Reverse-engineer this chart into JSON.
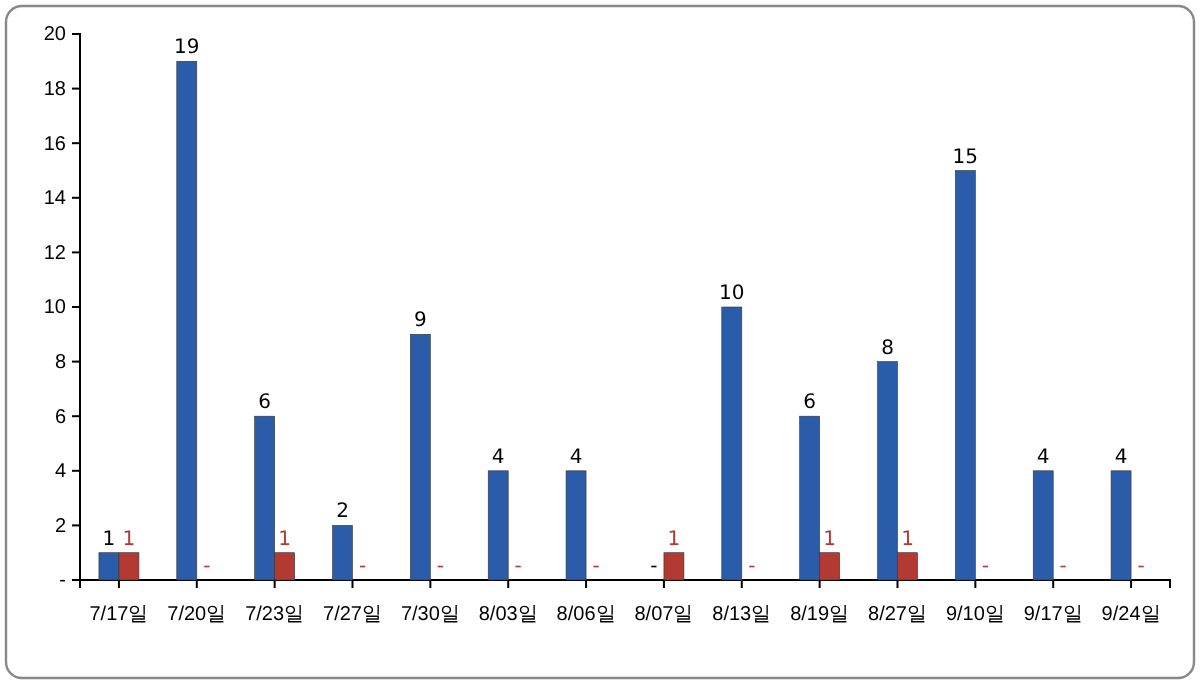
{
  "chart_data": {
    "type": "bar",
    "categories": [
      "7/17일",
      "7/20일",
      "7/23일",
      "7/27일",
      "7/30일",
      "8/03일",
      "8/06일",
      "8/07일",
      "8/13일",
      "8/19일",
      "8/27일",
      "9/10일",
      "9/17일",
      "9/24일"
    ],
    "series": [
      {
        "color": "#2a5caa",
        "values": [
          1,
          19,
          6,
          2,
          9,
          4,
          4,
          0,
          10,
          6,
          8,
          15,
          4,
          4
        ],
        "value_labels": [
          "1",
          "19",
          "6",
          "2",
          "9",
          "4",
          "4",
          "-",
          "10",
          "6",
          "8",
          "15",
          "4",
          "4"
        ]
      },
      {
        "color": "#b23a32",
        "values": [
          1,
          0,
          1,
          0,
          0,
          0,
          0,
          1,
          0,
          1,
          1,
          0,
          0,
          0
        ],
        "value_labels": [
          "1",
          "-",
          "1",
          "-",
          "-",
          "-",
          "-",
          "1",
          "-",
          "1",
          "1",
          "-",
          "-",
          "-"
        ]
      }
    ],
    "ylim": [
      0,
      20
    ],
    "yticks": [
      {
        "value": 0,
        "label": "-"
      },
      2,
      4,
      6,
      8,
      10,
      12,
      14,
      16,
      18,
      20
    ],
    "grid": false
  }
}
